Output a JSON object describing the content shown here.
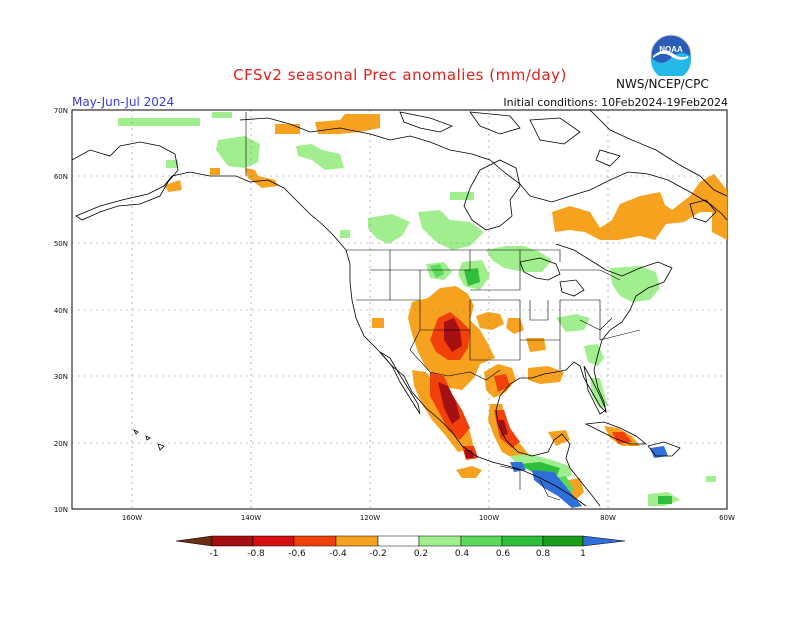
{
  "header": {
    "title": "CFSv2 seasonal Prec anomalies (mm/day)",
    "season": "May-Jun-Jul 2024",
    "initial_conditions": "Initial conditions: 10Feb2024-19Feb2024",
    "agency": "NWS/NCEP/CPC",
    "logo_text": "NOAA"
  },
  "map": {
    "lat_labels": [
      "70N",
      "60N",
      "50N",
      "40N",
      "30N",
      "20N",
      "10N"
    ],
    "lon_labels": [
      "160W",
      "140W",
      "120W",
      "100W",
      "80W",
      "60W"
    ],
    "lat_range": [
      10,
      70
    ],
    "lon_range": [
      -170,
      -60
    ],
    "grid": true
  },
  "colorbar": {
    "labels": [
      "-1",
      "-0.8",
      "-0.6",
      "-0.4",
      "-0.2",
      "0.2",
      "0.4",
      "0.6",
      "0.8",
      "1"
    ],
    "colors": [
      "#6b2e14",
      "#a51010",
      "#d41010",
      "#f2400a",
      "#f7a21f",
      "#ffffff",
      "#a1ee8f",
      "#5bd95b",
      "#2fbf3a",
      "#1a9e1a",
      "#2f6fd8"
    ]
  },
  "anomaly_colors": {
    "dry_light": "#f7a21f",
    "dry_mid": "#f2400a",
    "dry_strong": "#d41010",
    "dry_extreme": "#a51010",
    "wet_light": "#a1ee8f",
    "wet_mid": "#5bd95b",
    "wet_strong": "#2fbf3a",
    "wet_extreme": "#2f6fd8"
  }
}
